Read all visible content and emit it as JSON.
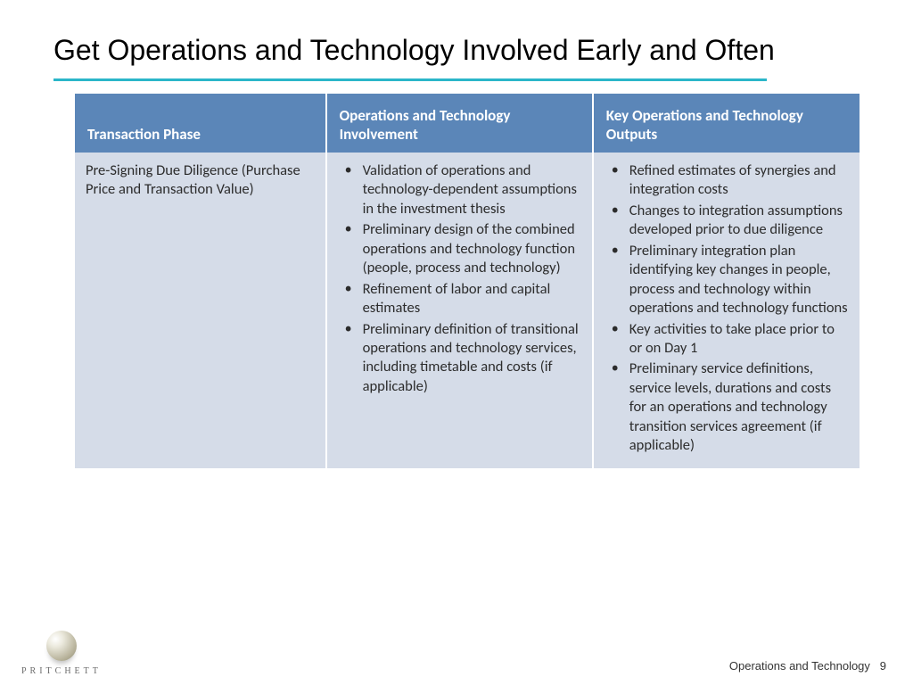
{
  "title": "Get Operations and Technology Involved Early and Often",
  "columns": [
    "Transaction Phase",
    "Operations  and Technology Involvement",
    "Key  Operations and Technology Outputs"
  ],
  "col_widths": [
    "32%",
    "34%",
    "34%"
  ],
  "header_bg": "#5b86b8",
  "header_text_color": "#ffffff",
  "body_bg": "#d5dce8",
  "body_text_color": "#2c2c2c",
  "underline_color": "#2bb6c9",
  "row": {
    "phase": "Pre-Signing Due Diligence (Purchase Price and Transaction Value)",
    "involvement": [
      "Validation of operations and technology-dependent assumptions in the investment thesis",
      "Preliminary design of the combined operations and technology function (people, process and technology)",
      "Refinement of labor and capital estimates",
      "Preliminary definition of transitional operations and technology services, including timetable and costs (if applicable)"
    ],
    "outputs": [
      "Refined estimates of synergies and integration costs",
      "Changes to integration assumptions developed prior to due diligence",
      "Preliminary integration plan identifying key changes in people, process and technology within operations and technology functions",
      "Key activities to take place prior to or on Day 1",
      "Preliminary service definitions, service levels, durations and costs for an operations and technology transition services agreement (if applicable)"
    ]
  },
  "footer_label": "Operations and Technology",
  "page_number": "9",
  "brand": "PRITCHETT"
}
